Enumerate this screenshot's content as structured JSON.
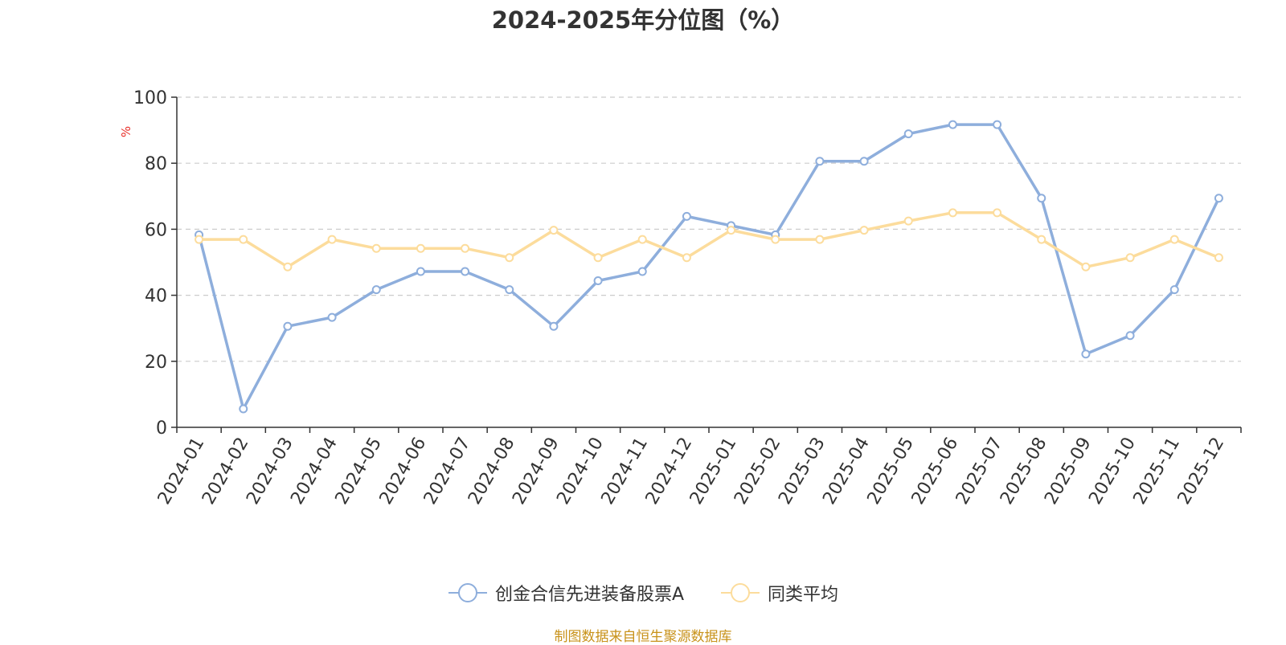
{
  "chart_data": {
    "type": "line",
    "title": "2024-2025年分位图（%）",
    "ylabel": "%",
    "ylim": [
      0,
      100
    ],
    "y_ticks": [
      0,
      20,
      40,
      60,
      80,
      100
    ],
    "grid": true,
    "legend_position": "bottom",
    "categories": [
      "2024-01",
      "2024-02",
      "2024-03",
      "2024-04",
      "2024-05",
      "2024-06",
      "2024-07",
      "2024-08",
      "2024-09",
      "2024-10",
      "2024-11",
      "2024-12",
      "2025-01",
      "2025-02",
      "2025-03",
      "2025-04",
      "2025-05",
      "2025-06",
      "2025-07",
      "2025-08",
      "2025-09",
      "2025-10",
      "2025-11",
      "2025-12"
    ],
    "series": [
      {
        "name": "创金合信先进装备股票A",
        "color": "#8eaedc",
        "values": [
          58.3,
          5.6,
          30.6,
          33.3,
          41.7,
          47.2,
          47.2,
          41.7,
          30.6,
          44.4,
          47.2,
          63.9,
          61.1,
          58.3,
          80.6,
          80.6,
          88.9,
          91.7,
          91.7,
          69.4,
          22.2,
          27.8,
          41.7,
          69.4
        ]
      },
      {
        "name": "同类平均",
        "color": "#fcdc9c",
        "values": [
          56.9,
          56.9,
          48.6,
          56.9,
          54.2,
          54.2,
          54.2,
          51.4,
          59.7,
          51.4,
          56.9,
          51.4,
          59.7,
          56.9,
          56.9,
          59.7,
          62.5,
          65.0,
          65.0,
          56.9,
          48.6,
          51.4,
          56.9,
          51.4
        ]
      }
    ]
  },
  "footer": {
    "source": "制图数据来自恒生聚源数据库"
  }
}
